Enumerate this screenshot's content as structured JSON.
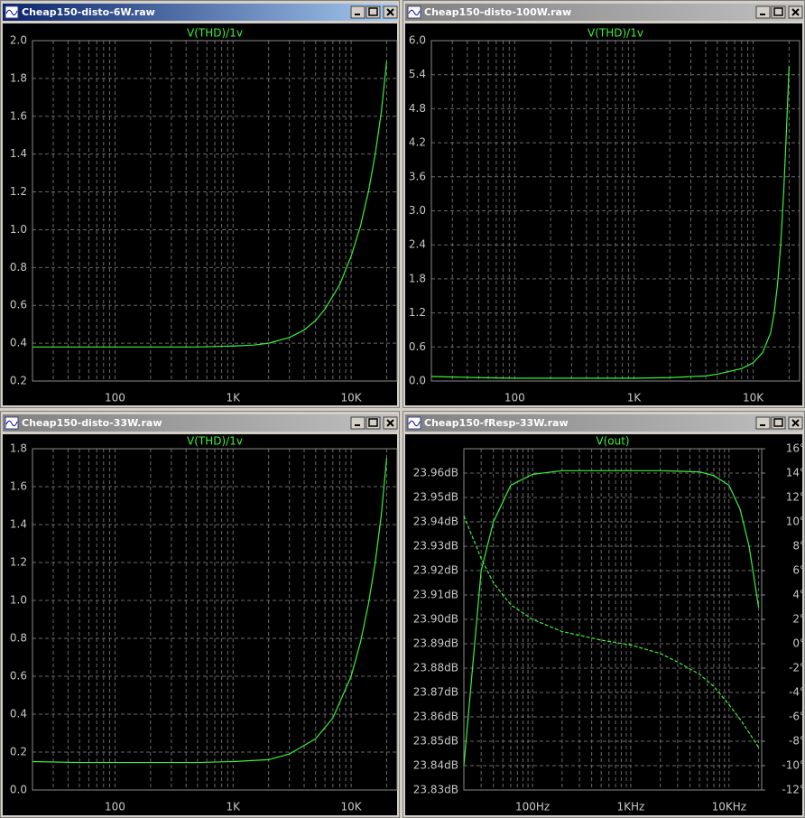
{
  "chart_data": [
    {
      "window_title": "Cheap150-disto-6W.raw",
      "type": "line",
      "title": "V(THD)/1v",
      "color": "#3cf03c",
      "log_x": true,
      "grid": true,
      "x": [
        20,
        50,
        100,
        200,
        500,
        1000,
        1500,
        2000,
        3000,
        4000,
        5000,
        6000,
        8000,
        10000,
        12000,
        14000,
        16000,
        18000,
        20000
      ],
      "values": [
        0.38,
        0.38,
        0.38,
        0.38,
        0.38,
        0.385,
        0.39,
        0.4,
        0.43,
        0.47,
        0.52,
        0.58,
        0.71,
        0.86,
        1.02,
        1.2,
        1.4,
        1.62,
        1.89
      ],
      "xlim": [
        20,
        24500
      ],
      "xticks": [
        100,
        {
          "value": 1000,
          "label": "1K"
        },
        {
          "value": 10000,
          "label": "10K"
        }
      ],
      "xminor": [
        30,
        40,
        50,
        60,
        70,
        80,
        90,
        200,
        300,
        400,
        500,
        600,
        700,
        800,
        900,
        2000,
        3000,
        4000,
        5000,
        6000,
        7000,
        8000,
        9000,
        20000
      ],
      "ylim": [
        0.2,
        2.0
      ],
      "yticks": [
        0.2,
        0.4,
        0.6,
        0.8,
        {
          "value": 1.0,
          "label": "1.0"
        },
        1.2,
        1.4,
        1.6,
        1.8,
        {
          "value": 2.0,
          "label": "2.0"
        }
      ]
    },
    {
      "window_title": "Cheap150-disto-100W.raw",
      "type": "line",
      "title": "V(THD)/1v",
      "color": "#3cf03c",
      "log_x": true,
      "grid": true,
      "x": [
        20,
        50,
        100,
        200,
        500,
        1000,
        2000,
        4000,
        5000,
        8000,
        10000,
        12000,
        14000,
        15000,
        16000,
        17000,
        18000,
        19000,
        20000
      ],
      "values": [
        0.08,
        0.06,
        0.05,
        0.05,
        0.05,
        0.05,
        0.06,
        0.09,
        0.12,
        0.22,
        0.32,
        0.5,
        0.85,
        1.2,
        1.7,
        2.4,
        3.3,
        4.4,
        5.55
      ],
      "xlim": [
        20,
        24500
      ],
      "xticks": [
        100,
        {
          "value": 1000,
          "label": "1K"
        },
        {
          "value": 10000,
          "label": "10K"
        }
      ],
      "xminor": [
        30,
        40,
        50,
        60,
        70,
        80,
        90,
        200,
        300,
        400,
        500,
        600,
        700,
        800,
        900,
        2000,
        3000,
        4000,
        5000,
        6000,
        7000,
        8000,
        9000,
        20000
      ],
      "ylim": [
        0,
        6
      ],
      "yticks": [
        {
          "value": 0,
          "label": "0.0"
        },
        0.6,
        1.2,
        1.8,
        2.4,
        {
          "value": 3,
          "label": "3.0"
        },
        3.6,
        4.2,
        4.8,
        5.4,
        {
          "value": 6,
          "label": "6.0"
        }
      ]
    },
    {
      "window_title": "Cheap150-disto-33W.raw",
      "type": "line",
      "title": "V(THD)/1v",
      "color": "#3cf03c",
      "log_x": true,
      "grid": true,
      "x": [
        20,
        50,
        100,
        200,
        500,
        1000,
        2000,
        3000,
        5000,
        7000,
        10000,
        12000,
        14000,
        16000,
        18000,
        20000
      ],
      "values": [
        0.15,
        0.145,
        0.145,
        0.145,
        0.145,
        0.15,
        0.16,
        0.19,
        0.27,
        0.38,
        0.6,
        0.78,
        0.98,
        1.2,
        1.45,
        1.75
      ],
      "xlim": [
        20,
        24500
      ],
      "xticks": [
        100,
        {
          "value": 1000,
          "label": "1K"
        },
        {
          "value": 10000,
          "label": "10K"
        }
      ],
      "xminor": [
        30,
        40,
        50,
        60,
        70,
        80,
        90,
        200,
        300,
        400,
        500,
        600,
        700,
        800,
        900,
        2000,
        3000,
        4000,
        5000,
        6000,
        7000,
        8000,
        9000,
        20000
      ],
      "ylim": [
        0,
        1.8
      ],
      "yticks": [
        {
          "value": 0,
          "label": "0.0"
        },
        0.2,
        0.4,
        0.6,
        0.8,
        {
          "value": 1.0,
          "label": "1.0"
        },
        1.2,
        1.4,
        1.6,
        1.8
      ]
    },
    {
      "window_title": "Cheap150-fResp-33W.raw",
      "type": "line",
      "title": "V(out)",
      "log_x": true,
      "grid": true,
      "x": [
        20,
        30,
        40,
        60,
        100,
        200,
        500,
        1000,
        2000,
        3000,
        5000,
        7000,
        10000,
        13000,
        16000,
        20000
      ],
      "series": [
        {
          "color": "#3cf03c",
          "values": [
            23.84,
            23.92,
            23.94,
            23.955,
            23.9595,
            23.961,
            23.961,
            23.961,
            23.961,
            23.9608,
            23.9605,
            23.959,
            23.955,
            23.945,
            23.93,
            23.905
          ]
        },
        {
          "color": "#3cf03c",
          "axis": "y2",
          "dash": true,
          "values": [
            10.5,
            7,
            5,
            3.2,
            2,
            1,
            0.3,
            -0.1,
            -0.8,
            -1.5,
            -2.5,
            -3.5,
            -5,
            -6.2,
            -7.3,
            -8.5
          ]
        }
      ],
      "xlim": [
        20,
        21500
      ],
      "xticks": [
        {
          "value": 100,
          "label": "100Hz"
        },
        {
          "value": 1000,
          "label": "1KHz"
        },
        {
          "value": 10000,
          "label": "10KHz"
        }
      ],
      "xminor": [
        30,
        40,
        50,
        60,
        70,
        80,
        90,
        200,
        300,
        400,
        500,
        600,
        700,
        800,
        900,
        2000,
        3000,
        4000,
        5000,
        6000,
        7000,
        8000,
        9000,
        20000
      ],
      "ylim": [
        23.83,
        23.97
      ],
      "yticks": [
        {
          "value": 23.83,
          "label": "23.83dB"
        },
        {
          "value": 23.84,
          "label": "23.84dB"
        },
        {
          "value": 23.85,
          "label": "23.85dB"
        },
        {
          "value": 23.86,
          "label": "23.86dB"
        },
        {
          "value": 23.87,
          "label": "23.87dB"
        },
        {
          "value": 23.88,
          "label": "23.88dB"
        },
        {
          "value": 23.89,
          "label": "23.89dB"
        },
        {
          "value": 23.9,
          "label": "23.90dB"
        },
        {
          "value": 23.91,
          "label": "23.91dB"
        },
        {
          "value": 23.92,
          "label": "23.92dB"
        },
        {
          "value": 23.93,
          "label": "23.93dB"
        },
        {
          "value": 23.94,
          "label": "23.94dB"
        },
        {
          "value": 23.95,
          "label": "23.95dB"
        },
        {
          "value": 23.96,
          "label": "23.96dB"
        }
      ],
      "y2lim": [
        -12,
        16
      ],
      "y2ticks": [
        {
          "value": -12,
          "label": "-12°"
        },
        {
          "value": -10,
          "label": "-10°"
        },
        {
          "value": -8,
          "label": "-8°"
        },
        {
          "value": -6,
          "label": "-6°"
        },
        {
          "value": -4,
          "label": "-4°"
        },
        {
          "value": -2,
          "label": "-2°"
        },
        {
          "value": 0,
          "label": "0°"
        },
        {
          "value": 2,
          "label": "2°"
        },
        {
          "value": 4,
          "label": "4°"
        },
        {
          "value": 6,
          "label": "6°"
        },
        {
          "value": 8,
          "label": "8°"
        },
        {
          "value": 10,
          "label": "10°"
        },
        {
          "value": 12,
          "label": "12°"
        },
        {
          "value": 14,
          "label": "14°"
        },
        {
          "value": 16,
          "label": "16°"
        }
      ]
    }
  ]
}
